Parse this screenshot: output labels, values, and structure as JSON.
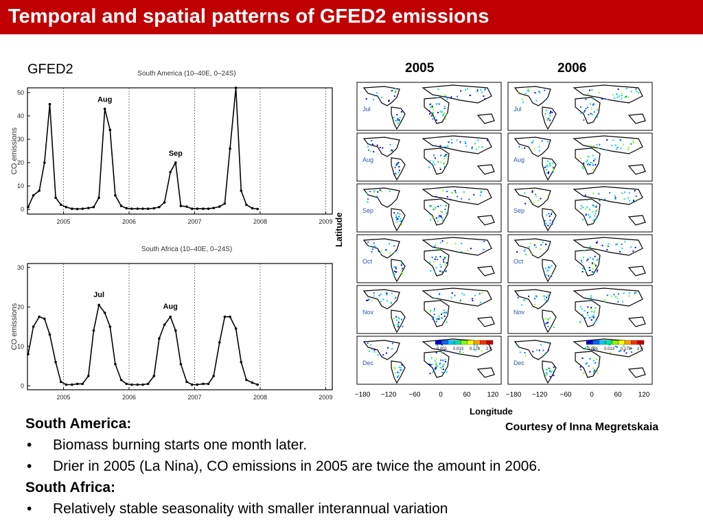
{
  "header": {
    "title": "Temporal and spatial patterns of GFED2 emissions"
  },
  "labels": {
    "gfed": "GFED2",
    "year_left": "2005",
    "year_right": "2006",
    "latitude": "Latitude",
    "longitude": "Longitude",
    "courtesy": "Courtesy of Inna Megretskaia"
  },
  "maps": {
    "months": [
      "Jul",
      "Aug",
      "Sep",
      "Oct",
      "Nov",
      "Dec"
    ],
    "lon_ticks": [
      "−180",
      "−120",
      "−60",
      "0",
      "60",
      "120"
    ],
    "colorbar_ticks": [
      "0.001",
      "0.013",
      "0.178",
      "2.4"
    ],
    "colorbar_colors": [
      "#0000c8",
      "#0066ff",
      "#00c8ff",
      "#00e0a0",
      "#80ff00",
      "#ffff00",
      "#ffa000",
      "#ff3000",
      "#c00000"
    ]
  },
  "notes": {
    "sa_heading": "South America:",
    "bullet_mark": "•",
    "sa_b1": "Biomass burning starts one month later.",
    "sa_b2": "Drier in 2005 (La Nina), CO emissions in 2005 are twice the amount in 2006.",
    "af_heading": "South Africa:",
    "af_b1": "Relatively stable seasonality with smaller interannual variation"
  },
  "chart_data": [
    {
      "type": "line",
      "title": "South America (10–40E, 0–24S)",
      "ylabel": "CO emissions",
      "xlim": [
        2004.45,
        2009.1
      ],
      "ylim": [
        -2,
        52
      ],
      "yticks": [
        0,
        10,
        20,
        30,
        40,
        50
      ],
      "xticks": [
        2005,
        2006,
        2007,
        2008,
        2009
      ],
      "gridlines": "vertical dotted at year boundaries",
      "series": [
        {
          "x": [
            2004.46,
            2004.54,
            2004.63,
            2004.71,
            2004.79,
            2004.88,
            2004.96,
            2005.04,
            2005.13,
            2005.21,
            2005.29,
            2005.38,
            2005.46,
            2005.54,
            2005.63,
            2005.71,
            2005.79,
            2005.88,
            2005.96,
            2006.04,
            2006.13,
            2006.21,
            2006.29,
            2006.38,
            2006.46,
            2006.54,
            2006.63,
            2006.71,
            2006.79,
            2006.88,
            2006.96,
            2007.04,
            2007.13,
            2007.21,
            2007.29,
            2007.38,
            2007.46,
            2007.54,
            2007.63,
            2007.71,
            2007.79,
            2007.88,
            2007.96
          ],
          "values": [
            1,
            6,
            8,
            20,
            45,
            5,
            2,
            1,
            0.3,
            0.2,
            0.3,
            0.6,
            1,
            5,
            43,
            34,
            6,
            1.5,
            0.5,
            0.3,
            0.3,
            0.3,
            0.3,
            0.5,
            1,
            3,
            16,
            20,
            1.5,
            1.2,
            0.3,
            0.3,
            0.3,
            0.3,
            0.6,
            1.2,
            2.5,
            26,
            52,
            8,
            2,
            0.5,
            0.2
          ]
        }
      ],
      "annotations": [
        {
          "text": "Aug",
          "x": 2005.63,
          "y": 46
        },
        {
          "text": "Sep",
          "x": 2006.71,
          "y": 23
        }
      ]
    },
    {
      "type": "line",
      "title": "South Africa (10–40E, 0–24S)",
      "ylabel": "CO emissions",
      "xlim": [
        2004.45,
        2009.1
      ],
      "ylim": [
        -1,
        31
      ],
      "yticks": [
        0,
        10,
        20,
        30
      ],
      "xticks": [
        2005,
        2006,
        2007,
        2008,
        2009
      ],
      "gridlines": "vertical dotted at year boundaries",
      "series": [
        {
          "x": [
            2004.46,
            2004.54,
            2004.63,
            2004.71,
            2004.79,
            2004.88,
            2004.96,
            2005.04,
            2005.13,
            2005.21,
            2005.29,
            2005.38,
            2005.46,
            2005.54,
            2005.63,
            2005.71,
            2005.79,
            2005.88,
            2005.96,
            2006.04,
            2006.13,
            2006.21,
            2006.29,
            2006.38,
            2006.46,
            2006.54,
            2006.63,
            2006.71,
            2006.79,
            2006.88,
            2006.96,
            2007.04,
            2007.13,
            2007.21,
            2007.29,
            2007.38,
            2007.46,
            2007.54,
            2007.63,
            2007.71,
            2007.79,
            2007.88,
            2007.96
          ],
          "values": [
            8,
            15,
            17.5,
            17,
            13,
            6,
            1,
            0.3,
            0.3,
            0.5,
            0.5,
            2.5,
            14,
            20.5,
            18.5,
            15,
            5.5,
            1.5,
            0.5,
            0.3,
            0.3,
            0.3,
            0.5,
            2.5,
            12,
            15.5,
            17.5,
            14,
            5.5,
            1,
            0.3,
            0.3,
            0.5,
            0.5,
            2.5,
            11,
            17.5,
            17.5,
            14.5,
            6,
            1.5,
            0.8,
            0.3
          ]
        }
      ],
      "annotations": [
        {
          "text": "Jul",
          "x": 2005.54,
          "y": 22.5
        },
        {
          "text": "Aug",
          "x": 2006.63,
          "y": 19.5
        }
      ]
    }
  ]
}
